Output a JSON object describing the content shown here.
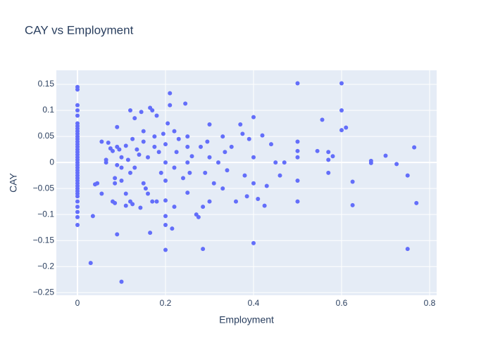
{
  "chart_data": {
    "type": "scatter",
    "title": "CAY vs Employment",
    "x_label": "Employment",
    "y_label": "CAY",
    "color": "#636efa",
    "grid": true,
    "xlim": [
      -0.048,
      0.816
    ],
    "xticks": [
      0,
      0.2,
      0.4,
      0.6,
      0.8
    ],
    "ylim": [
      -0.255,
      0.177
    ],
    "yticks": [
      0.15,
      0.1,
      0.05,
      0,
      {
        "value": -0.05,
        "label": "−0.05"
      },
      {
        "value": -0.1,
        "label": "−0.1"
      },
      {
        "value": -0.15,
        "label": "−0.15"
      },
      {
        "value": -0.2,
        "label": "−0.2"
      },
      {
        "value": -0.25,
        "label": "−0.25"
      }
    ],
    "x": [
      0,
      0,
      0,
      0,
      0,
      0,
      0,
      0,
      0,
      0,
      0,
      0,
      0,
      0,
      0,
      0,
      0,
      0,
      0,
      0,
      0,
      0,
      0,
      0,
      0,
      0,
      0,
      0,
      0,
      0,
      0,
      0,
      0,
      0,
      0,
      0,
      0,
      0,
      0,
      0.03,
      0.035,
      0.04,
      0.045,
      0.055,
      0.055,
      0.065,
      0.065,
      0.07,
      0.075,
      0.08,
      0.08,
      0.085,
      0.085,
      0.085,
      0.09,
      0.09,
      0.09,
      0.09,
      0.095,
      0.1,
      0.1,
      0.1,
      0.1,
      0.11,
      0.11,
      0.11,
      0.115,
      0.12,
      0.12,
      0.12,
      0.125,
      0.125,
      0.13,
      0.13,
      0.135,
      0.14,
      0.143,
      0.145,
      0.15,
      0.15,
      0.15,
      0.155,
      0.16,
      0.16,
      0.165,
      0.165,
      0.17,
      0.17,
      0.175,
      0.175,
      0.18,
      0.18,
      0.185,
      0.19,
      0.195,
      0.2,
      0.2,
      0.2,
      0.2,
      0.2,
      0.2,
      0.2,
      0.205,
      0.21,
      0.21,
      0.215,
      0.22,
      0.22,
      0.22,
      0.225,
      0.23,
      0.24,
      0.245,
      0.25,
      0.25,
      0.25,
      0.25,
      0.255,
      0.26,
      0.27,
      0.275,
      0.28,
      0.285,
      0.285,
      0.29,
      0.295,
      0.3,
      0.3,
      0.3,
      0.31,
      0.32,
      0.33,
      0.33,
      0.335,
      0.34,
      0.35,
      0.36,
      0.37,
      0.375,
      0.38,
      0.385,
      0.39,
      0.4,
      0.4,
      0.4,
      0.4,
      0.41,
      0.42,
      0.425,
      0.43,
      0.44,
      0.45,
      0.46,
      0.47,
      0.5,
      0.5,
      0.5,
      0.5,
      0.5,
      0.5,
      0.545,
      0.556,
      0.57,
      0.57,
      0.57,
      0.58,
      0.6,
      0.6,
      0.6,
      0.61,
      0.625,
      0.625,
      0.667,
      0.667,
      0.7,
      0.725,
      0.75,
      0.75,
      0.765,
      0.77
    ],
    "values": [
      0.145,
      0.14,
      0.11,
      0.1,
      0.09,
      0.075,
      0.07,
      0.065,
      0.06,
      0.055,
      0.05,
      0.045,
      0.04,
      0.035,
      0.03,
      0.025,
      0.02,
      0.015,
      0.01,
      0.005,
      0,
      -0.005,
      -0.01,
      -0.015,
      -0.02,
      -0.025,
      -0.03,
      -0.035,
      -0.04,
      -0.045,
      -0.05,
      -0.055,
      -0.06,
      -0.065,
      -0.075,
      -0.085,
      -0.095,
      -0.105,
      -0.12,
      -0.193,
      -0.103,
      -0.042,
      -0.04,
      -0.06,
      0.04,
      0.005,
      0,
      0.038,
      0.027,
      -0.075,
      0.022,
      -0.078,
      -0.03,
      -0.04,
      -0.138,
      0.068,
      0.03,
      -0.005,
      0.025,
      -0.229,
      0.01,
      -0.01,
      -0.035,
      -0.06,
      -0.083,
      0.032,
      0.005,
      -0.075,
      0.1,
      -0.02,
      0.045,
      -0.08,
      0.085,
      -0.01,
      0.025,
      0.015,
      -0.087,
      0.097,
      0.06,
      0.04,
      -0.04,
      -0.05,
      0.01,
      -0.06,
      -0.135,
      0.105,
      0.1,
      -0.075,
      0.05,
      0.03,
      -0.075,
      0.09,
      0.02,
      -0.02,
      0.055,
      -0.168,
      -0.12,
      -0.103,
      -0.073,
      0.035,
      0,
      -0.035,
      0.075,
      0.133,
      0.11,
      -0.127,
      -0.085,
      0.06,
      -0.01,
      0.02,
      0.045,
      -0.03,
      0.113,
      0.05,
      -0.058,
      0,
      0.03,
      -0.02,
      0.012,
      -0.1,
      -0.105,
      0.03,
      -0.166,
      -0.085,
      -0.02,
      0.04,
      0.073,
      -0.075,
      0.01,
      -0.04,
      0,
      -0.05,
      0.05,
      0.02,
      -0.015,
      0.03,
      -0.075,
      0.073,
      0.055,
      -0.025,
      -0.065,
      0.045,
      0.087,
      -0.155,
      -0.04,
      0.01,
      -0.07,
      0.052,
      -0.083,
      -0.045,
      0.035,
      0,
      -0.025,
      0,
      0.152,
      0.04,
      0.022,
      0.01,
      -0.035,
      -0.075,
      0.022,
      0.082,
      0.02,
      0.005,
      -0.02,
      0.012,
      0.152,
      0.1,
      0.062,
      0.067,
      -0.037,
      -0.082,
      0.003,
      -0.001,
      0.013,
      -0.003,
      -0.025,
      -0.166,
      0.029,
      -0.078
    ]
  }
}
